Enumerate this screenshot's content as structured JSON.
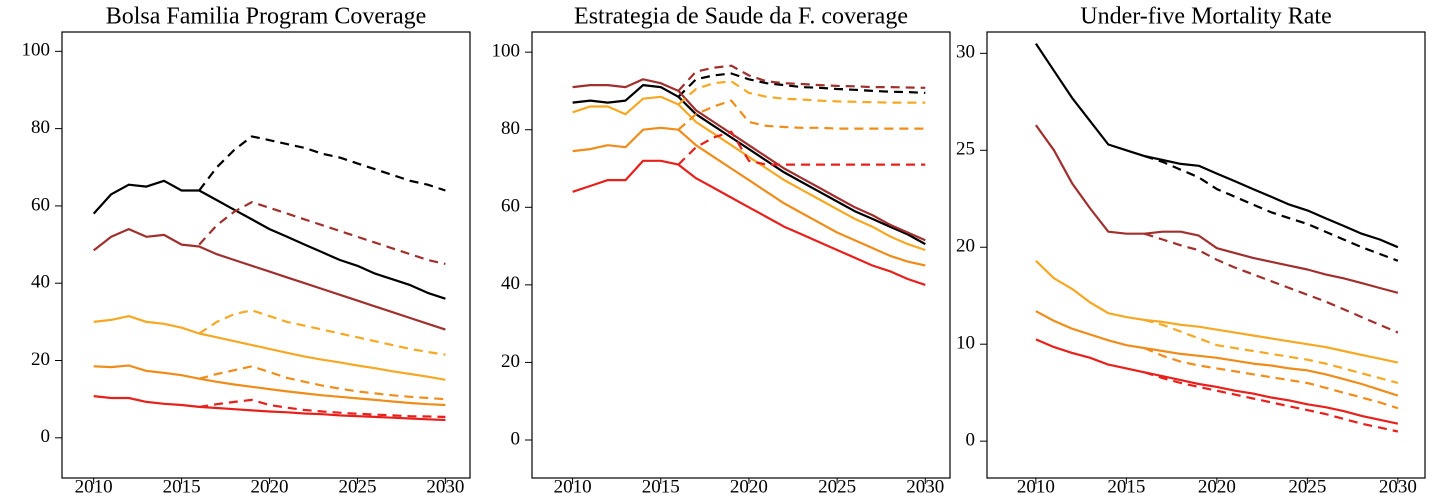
{
  "chart_data": [
    {
      "type": "line",
      "title": "Bolsa Familia Program Coverage",
      "x": [
        2010,
        2011,
        2012,
        2013,
        2014,
        2015,
        2016,
        2017,
        2018,
        2019,
        2020,
        2021,
        2022,
        2023,
        2024,
        2025,
        2026,
        2027,
        2028,
        2029,
        2030
      ],
      "xlim": [
        2008.2,
        2031.4
      ],
      "xticks": [
        2010,
        2015,
        2020,
        2025,
        2030
      ],
      "ylim": [
        -10.4,
        105
      ],
      "yticks": [
        0,
        20,
        40,
        60,
        80,
        100
      ],
      "series": [
        {
          "color": "#000000",
          "dash": false,
          "values": [
            58,
            63,
            65.5,
            65,
            66.5,
            64,
            64,
            61.5,
            59,
            56.5,
            54,
            52,
            50,
            48,
            46,
            44.5,
            42.5,
            41,
            39.5,
            37.5,
            36
          ]
        },
        {
          "color": "#000000",
          "dash": true,
          "values": [
            null,
            null,
            null,
            null,
            null,
            null,
            64,
            70,
            74.5,
            78,
            77,
            76,
            75,
            73.5,
            72.5,
            71,
            69.5,
            68,
            66.5,
            65.5,
            64
          ]
        },
        {
          "color": "#a0302e",
          "dash": false,
          "values": [
            48.5,
            52,
            54,
            52,
            52.5,
            50,
            49.5,
            47.5,
            46,
            44.5,
            43,
            41.5,
            40,
            38.5,
            37,
            35.5,
            34,
            32.5,
            31,
            29.5,
            28
          ]
        },
        {
          "color": "#a0302e",
          "dash": true,
          "values": [
            null,
            null,
            null,
            null,
            null,
            null,
            50,
            55,
            58.5,
            61,
            59.5,
            58,
            56.5,
            55,
            53.5,
            52,
            50.5,
            49,
            47.5,
            46,
            45
          ]
        },
        {
          "color": "#f7a823",
          "dash": false,
          "values": [
            30,
            30.5,
            31.5,
            30,
            29.5,
            28.5,
            27,
            26,
            25,
            24,
            23,
            22,
            21,
            20.2,
            19.5,
            18.7,
            18,
            17.2,
            16.5,
            15.8,
            15
          ]
        },
        {
          "color": "#f7a823",
          "dash": true,
          "values": [
            null,
            null,
            null,
            null,
            null,
            null,
            27,
            30,
            32,
            33,
            31.5,
            30,
            29,
            28,
            27,
            26,
            25,
            24,
            23,
            22.2,
            21.5
          ]
        },
        {
          "color": "#f08c1a",
          "dash": false,
          "values": [
            18.5,
            18.3,
            18.7,
            17.3,
            16.8,
            16.2,
            15.3,
            14.5,
            13.8,
            13.2,
            12.6,
            12,
            11.5,
            11,
            10.6,
            10.2,
            9.8,
            9.4,
            9,
            8.7,
            8.5
          ]
        },
        {
          "color": "#f08c1a",
          "dash": true,
          "values": [
            null,
            null,
            null,
            null,
            null,
            null,
            15.3,
            16.5,
            17.5,
            18.5,
            17,
            15.5,
            14.5,
            13.5,
            12.7,
            12,
            11.5,
            11,
            10.6,
            10.3,
            10
          ]
        },
        {
          "color": "#e8201c",
          "dash": false,
          "values": [
            10.8,
            10.3,
            10.3,
            9.3,
            8.8,
            8.5,
            8,
            7.7,
            7.4,
            7.1,
            6.8,
            6.6,
            6.3,
            6.1,
            5.8,
            5.6,
            5.4,
            5.2,
            5,
            4.8,
            4.6
          ]
        },
        {
          "color": "#e8201c",
          "dash": true,
          "values": [
            null,
            null,
            null,
            null,
            null,
            null,
            8,
            8.7,
            9.3,
            9.8,
            8.5,
            7.8,
            7.2,
            6.8,
            6.5,
            6.2,
            6,
            5.8,
            5.6,
            5.5,
            5.4
          ]
        }
      ]
    },
    {
      "type": "line",
      "title": "Estrategia de Saude da F. coverage",
      "x": [
        2010,
        2011,
        2012,
        2013,
        2014,
        2015,
        2016,
        2017,
        2018,
        2019,
        2020,
        2021,
        2022,
        2023,
        2024,
        2025,
        2026,
        2027,
        2028,
        2029,
        2030
      ],
      "xlim": [
        2007.7,
        2031.4
      ],
      "xticks": [
        2010,
        2015,
        2020,
        2025,
        2030
      ],
      "ylim": [
        -9.8,
        105.2
      ],
      "yticks": [
        0,
        20,
        40,
        60,
        80,
        100
      ],
      "series": [
        {
          "color": "#000000",
          "dash": false,
          "values": [
            87,
            87.5,
            87,
            87.5,
            91.5,
            91,
            88.5,
            84,
            81,
            78,
            75,
            72,
            69,
            66.5,
            64,
            61.5,
            59,
            57,
            55,
            53,
            50.5
          ]
        },
        {
          "color": "#000000",
          "dash": true,
          "values": [
            null,
            null,
            null,
            null,
            null,
            null,
            88.5,
            93,
            94,
            94.5,
            93,
            92,
            91.5,
            91,
            90.8,
            90.5,
            90.3,
            90,
            89.8,
            89.7,
            89.5
          ]
        },
        {
          "color": "#a0302e",
          "dash": false,
          "values": [
            91,
            91.5,
            91.5,
            91,
            93,
            92,
            90,
            85,
            82,
            79,
            76,
            73,
            70,
            67.5,
            65,
            62.5,
            60,
            58,
            55.5,
            53.5,
            51.5
          ]
        },
        {
          "color": "#a0302e",
          "dash": true,
          "values": [
            null,
            null,
            null,
            null,
            null,
            null,
            90,
            95,
            96,
            96.5,
            94,
            92.5,
            92,
            91.8,
            91.5,
            91.3,
            91.2,
            91,
            91,
            90.9,
            90.8
          ]
        },
        {
          "color": "#f7a823",
          "dash": false,
          "values": [
            84.5,
            86,
            86,
            84,
            88,
            88.5,
            86.5,
            82,
            79,
            76,
            73,
            70,
            67,
            64.5,
            62,
            59.5,
            57,
            55,
            52.5,
            50.5,
            49
          ]
        },
        {
          "color": "#f7a823",
          "dash": true,
          "values": [
            null,
            null,
            null,
            null,
            null,
            null,
            86.5,
            90.5,
            92,
            92.5,
            89.5,
            88.5,
            88,
            87.8,
            87.5,
            87.3,
            87.2,
            87.1,
            87,
            87,
            87
          ]
        },
        {
          "color": "#f08c1a",
          "dash": false,
          "values": [
            74.5,
            75,
            76,
            75.5,
            80,
            80.5,
            80,
            76,
            73,
            70,
            67,
            64,
            61,
            58.5,
            56,
            53.5,
            51.5,
            49.5,
            47.5,
            46,
            45
          ]
        },
        {
          "color": "#f08c1a",
          "dash": true,
          "values": [
            null,
            null,
            null,
            null,
            null,
            null,
            80,
            84,
            86,
            87.5,
            82,
            81,
            80.7,
            80.5,
            80.5,
            80.3,
            80.3,
            80.3,
            80.3,
            80.3,
            80.3
          ]
        },
        {
          "color": "#e8201c",
          "dash": false,
          "values": [
            64,
            65.5,
            67,
            67,
            72,
            72,
            71,
            67.5,
            65,
            62.5,
            60,
            57.5,
            55,
            53,
            51,
            49,
            47,
            45,
            43.5,
            41.5,
            40
          ]
        },
        {
          "color": "#e8201c",
          "dash": true,
          "values": [
            null,
            null,
            null,
            null,
            null,
            null,
            71,
            75.5,
            78,
            79.5,
            72,
            71,
            71,
            71,
            71,
            71,
            71,
            71,
            71,
            71,
            71
          ]
        }
      ]
    },
    {
      "type": "line",
      "title": "Under-five Mortality Rate",
      "x": [
        2010,
        2011,
        2012,
        2013,
        2014,
        2015,
        2016,
        2017,
        2018,
        2019,
        2020,
        2021,
        2022,
        2023,
        2024,
        2025,
        2026,
        2027,
        2028,
        2029,
        2030
      ],
      "xlim": [
        2007.3,
        2031.5
      ],
      "xticks": [
        2010,
        2015,
        2020,
        2025,
        2030
      ],
      "ylim": [
        -3.8,
        31.1
      ],
      "yticks": [
        0,
        10,
        20,
        25,
        30
      ],
      "series": [
        {
          "color": "#000000",
          "dash": false,
          "values": [
            30.5,
            29.1,
            27.7,
            26.5,
            25.3,
            25,
            24.7,
            24.5,
            24.3,
            24.2,
            23.8,
            23.4,
            23,
            22.6,
            22.2,
            21.9,
            21.5,
            21.1,
            20.7,
            20.4,
            20
          ]
        },
        {
          "color": "#000000",
          "dash": true,
          "values": [
            null,
            null,
            null,
            null,
            null,
            null,
            24.7,
            24.4,
            24,
            23.6,
            23,
            22.6,
            22.2,
            21.8,
            21.5,
            21.2,
            20.8,
            20.4,
            20,
            19.3,
            18.6
          ]
        },
        {
          "color": "#a0302e",
          "dash": false,
          "values": [
            26.3,
            25,
            23.3,
            22,
            20.8,
            20.7,
            20.7,
            20.8,
            20.8,
            20.6,
            19.9,
            19.4,
            18.9,
            18.5,
            18.1,
            17.7,
            17.2,
            16.8,
            16.3,
            15.8,
            15.3
          ]
        },
        {
          "color": "#a0302e",
          "dash": true,
          "values": [
            null,
            null,
            null,
            null,
            null,
            null,
            20.7,
            20.4,
            20.1,
            19.7,
            18.7,
            17.9,
            17.2,
            16.5,
            15.8,
            15.1,
            14.4,
            13.6,
            12.8,
            12,
            11.2
          ]
        },
        {
          "color": "#f7a823",
          "dash": false,
          "values": [
            18.6,
            16.8,
            15.7,
            14.3,
            13.2,
            12.8,
            12.5,
            12.3,
            12,
            11.8,
            11.5,
            11.2,
            10.9,
            10.6,
            10.3,
            10,
            9.7,
            9.3,
            8.9,
            8.5,
            8.1
          ]
        },
        {
          "color": "#f7a823",
          "dash": true,
          "values": [
            null,
            null,
            null,
            null,
            null,
            null,
            12.5,
            12,
            11.3,
            10.6,
            9.9,
            9.6,
            9.3,
            9,
            8.7,
            8.4,
            8,
            7.5,
            7,
            6.5,
            6
          ]
        },
        {
          "color": "#f08c1a",
          "dash": false,
          "values": [
            13.4,
            12.4,
            11.6,
            11,
            10.4,
            9.9,
            9.6,
            9.3,
            9,
            8.8,
            8.6,
            8.3,
            8,
            7.8,
            7.5,
            7.3,
            6.9,
            6.4,
            5.9,
            5.3,
            4.7
          ]
        },
        {
          "color": "#f08c1a",
          "dash": true,
          "values": [
            null,
            null,
            null,
            null,
            null,
            null,
            9.6,
            8.8,
            8.2,
            7.8,
            7.5,
            7.2,
            6.9,
            6.6,
            6.3,
            6,
            5.5,
            5,
            4.5,
            4,
            3.4
          ]
        },
        {
          "color": "#e8201c",
          "dash": false,
          "values": [
            10.5,
            9.7,
            9.1,
            8.6,
            7.9,
            7.5,
            7.1,
            6.7,
            6.3,
            5.9,
            5.6,
            5.2,
            4.9,
            4.5,
            4.2,
            3.8,
            3.5,
            3.1,
            2.6,
            2.2,
            1.8
          ]
        },
        {
          "color": "#e8201c",
          "dash": true,
          "values": [
            null,
            null,
            null,
            null,
            null,
            null,
            7.1,
            6.5,
            6,
            5.6,
            5.2,
            4.8,
            4.4,
            4,
            3.6,
            3.2,
            2.8,
            2.3,
            1.8,
            1.4,
            1
          ]
        }
      ]
    }
  ]
}
